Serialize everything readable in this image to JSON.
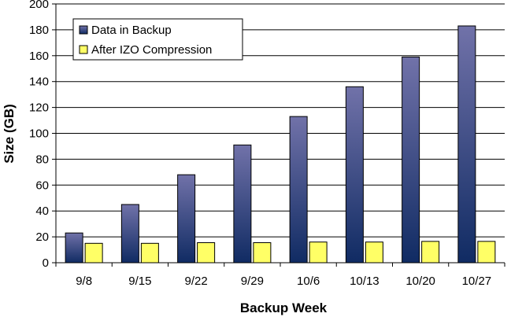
{
  "chart_data": {
    "type": "bar",
    "title": "",
    "xlabel": "Backup Week",
    "ylabel": "Size (GB)",
    "ylim": [
      0,
      200
    ],
    "yticks": [
      0,
      20,
      40,
      60,
      80,
      100,
      120,
      140,
      160,
      180,
      200
    ],
    "categories": [
      "9/8",
      "9/15",
      "9/22",
      "9/29",
      "10/6",
      "10/13",
      "10/20",
      "10/27"
    ],
    "series": [
      {
        "name": "Data in Backup",
        "values": [
          23,
          45,
          68,
          91,
          113,
          136,
          159,
          183
        ]
      },
      {
        "name": "After IZO Compression",
        "values": [
          15,
          15,
          15.5,
          15.5,
          16,
          16,
          16.5,
          16.5
        ]
      }
    ],
    "grid": true,
    "legend_position": "top-left",
    "colors": {
      "series1_top": "#7172a9",
      "series1_bottom": "#102b63",
      "series2": "#ffff66",
      "border": "#000000"
    }
  }
}
